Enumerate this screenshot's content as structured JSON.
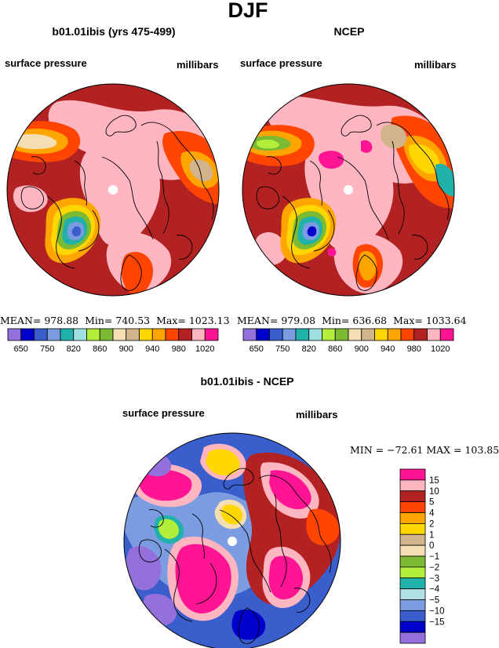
{
  "main_title": "DJF",
  "chart_data": [
    {
      "type": "polar-filled-contour-map",
      "title": "b01.01ibis (yrs 475-499)",
      "left_label": "surface pressure",
      "right_label": "millibars",
      "stats": {
        "mean_label": "MEAN=",
        "mean": "978.88",
        "min_label": "Min=",
        "min": "740.53",
        "max_label": "Max=",
        "max": "1023.13"
      },
      "colorbar": {
        "orientation": "horizontal",
        "levels": [
          650,
          700,
          750,
          800,
          820,
          840,
          860,
          880,
          900,
          920,
          940,
          960,
          980,
          1000,
          1020
        ],
        "tick_labels": [
          "650",
          "750",
          "820",
          "860",
          "900",
          "940",
          "980",
          "1020"
        ],
        "colors": [
          "#9370db",
          "#0000cd",
          "#3a5fcd",
          "#7b9ce0",
          "#20b2aa",
          "#9fe0e0",
          "#b3ee3a",
          "#7cba34",
          "#f5deb3",
          "#d2b48c",
          "#ffd700",
          "#ffa500",
          "#ff4500",
          "#b22222",
          "#ffb6c1",
          "#ff1493"
        ]
      }
    },
    {
      "type": "polar-filled-contour-map",
      "title": "NCEP",
      "left_label": "surface pressure",
      "right_label": "millibars",
      "stats": {
        "mean_label": "MEAN=",
        "mean": "979.08",
        "min_label": "Min=",
        "min": "636.68",
        "max_label": "Max=",
        "max": "1033.64"
      },
      "colorbar": {
        "orientation": "horizontal",
        "levels": [
          650,
          700,
          750,
          800,
          820,
          840,
          860,
          880,
          900,
          920,
          940,
          960,
          980,
          1000,
          1020
        ],
        "tick_labels": [
          "650",
          "750",
          "820",
          "860",
          "900",
          "940",
          "980",
          "1020"
        ],
        "colors": [
          "#9370db",
          "#0000cd",
          "#3a5fcd",
          "#7b9ce0",
          "#20b2aa",
          "#9fe0e0",
          "#b3ee3a",
          "#7cba34",
          "#f5deb3",
          "#d2b48c",
          "#ffd700",
          "#ffa500",
          "#ff4500",
          "#b22222",
          "#ffb6c1",
          "#ff1493"
        ]
      }
    },
    {
      "type": "polar-filled-contour-map",
      "title": "b01.01ibis - NCEP",
      "left_label": "surface pressure",
      "right_label": "millibars",
      "stats": {
        "text": "MIN = −72.61 MAX = 103.85"
      },
      "colorbar": {
        "orientation": "vertical",
        "tick_labels": [
          "15",
          "10",
          "5",
          "4",
          "2",
          "1",
          "0",
          "−1",
          "−2",
          "−3",
          "−4",
          "−5",
          "−10",
          "−15"
        ],
        "colors": [
          "#ff1493",
          "#ffb6c1",
          "#b22222",
          "#ff4500",
          "#ffa500",
          "#ffd700",
          "#d2b48c",
          "#f5deb3",
          "#7cba34",
          "#b3ee3a",
          "#20b2aa",
          "#b0e0e6",
          "#7b9ce0",
          "#3a5fcd",
          "#0000cd",
          "#9370db"
        ]
      }
    }
  ],
  "palette": {
    "pink": "#ffb6c1",
    "brick": "#b22222",
    "orange_red": "#ff4500",
    "orange": "#ffa500",
    "gold": "#ffd700",
    "tan": "#d2b48c",
    "wheat": "#f5deb3",
    "olive_green": "#7cba34",
    "light_green": "#b3ee3a",
    "teal": "#20b2aa",
    "pale_cyan": "#b0e0e6",
    "corn_blue": "#7b9ce0",
    "royal_blue": "#3a5fcd",
    "dark_blue": "#0000cd",
    "purple": "#9370db",
    "magenta": "#ff1493"
  }
}
